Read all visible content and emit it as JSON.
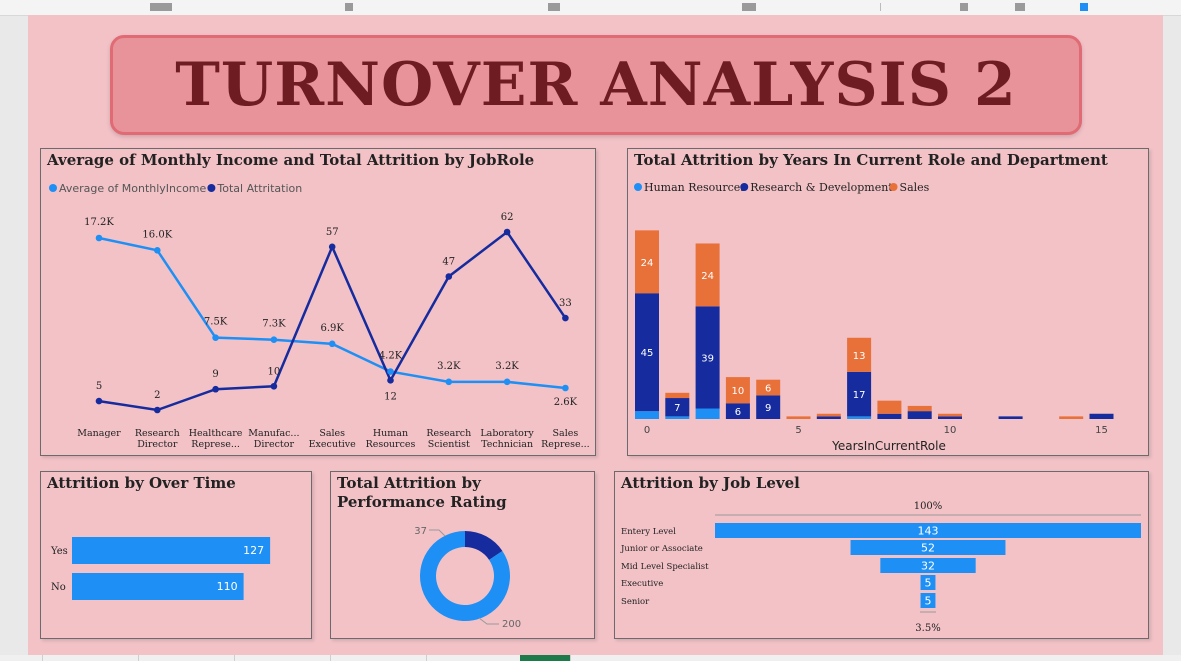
{
  "page": {
    "title": "TURNOVER ANALYSIS 2"
  },
  "colors": {
    "light_blue": "#1e8ff5",
    "dark_blue": "#152b9e",
    "orange": "#e8713a",
    "title_text": "#6e1c22"
  },
  "income_chart": {
    "title": "Average of Monthly Income and Total Attrition by JobRole",
    "legend": [
      "Average of MonthlyIncome",
      "Total Attritation"
    ],
    "chart_data": {
      "type": "line",
      "categories": [
        [
          "Manager"
        ],
        [
          "Research",
          "Director"
        ],
        [
          "Healthcare",
          "Represe..."
        ],
        [
          "Manufac...",
          "Director"
        ],
        [
          "Sales",
          "Executive"
        ],
        [
          "Human",
          "Resources"
        ],
        [
          "Research",
          "Scientist"
        ],
        [
          "Laboratory",
          "Technician"
        ],
        [
          "Sales",
          "Represe..."
        ]
      ],
      "series": [
        {
          "name": "Average of MonthlyIncome",
          "values": [
            17.2,
            16.0,
            7.5,
            7.3,
            6.9,
            4.2,
            3.2,
            3.2,
            2.6
          ],
          "labels": [
            "17.2K",
            "16.0K",
            "7.5K",
            "7.3K",
            "6.9K",
            "4.2K",
            "3.2K",
            "3.2K",
            "2.6K"
          ]
        },
        {
          "name": "Total Attritation",
          "values": [
            5,
            2,
            9,
            10,
            57,
            12,
            47,
            62,
            33
          ],
          "labels": [
            "5",
            "2",
            "9",
            "10",
            "57",
            "12",
            "47",
            "62",
            "33"
          ]
        }
      ]
    }
  },
  "years_chart": {
    "title": "Total Attrition by Years In Current Role and Department",
    "legend": [
      "Human Resources",
      "Research & Development",
      "Sales"
    ],
    "xlabel": "YearsInCurrentRole",
    "chart_data": {
      "type": "bar",
      "stacked": true,
      "x": [
        0,
        1,
        2,
        3,
        4,
        5,
        6,
        7,
        8,
        9,
        10,
        11,
        12,
        13,
        14,
        15
      ],
      "series": [
        {
          "name": "Human Resources",
          "values": [
            3,
            1,
            4,
            0,
            0,
            0,
            0,
            1,
            0,
            0,
            0,
            0,
            0,
            0,
            0,
            0
          ]
        },
        {
          "name": "Research & Development",
          "values": [
            45,
            7,
            39,
            6,
            9,
            0,
            1,
            17,
            2,
            3,
            1,
            0,
            1,
            0,
            0,
            2
          ]
        },
        {
          "name": "Sales",
          "values": [
            24,
            2,
            24,
            10,
            6,
            1,
            1,
            13,
            5,
            2,
            1,
            0,
            0,
            0,
            1,
            0
          ]
        }
      ],
      "data_labels": [
        "24",
        "45",
        "7",
        "24",
        "39",
        "10",
        "6",
        "6",
        "9",
        "13",
        "17"
      ],
      "xticks": [
        "0",
        "5",
        "10",
        "15"
      ]
    }
  },
  "overtime_chart": {
    "title": "Attrition by Over Time",
    "chart_data": {
      "type": "bar",
      "orientation": "horizontal",
      "categories": [
        "Yes",
        "No"
      ],
      "values": [
        127,
        110
      ],
      "labels": [
        "127",
        "110"
      ]
    }
  },
  "performance_chart": {
    "title": "Total Attrition by Performance Rating",
    "chart_data": {
      "type": "pie",
      "donut": true,
      "values": [
        37,
        200
      ],
      "labels": [
        "37",
        "200"
      ]
    }
  },
  "joblevel_chart": {
    "title": "Attrition by Job Level",
    "top_label": "100%",
    "bottom_label": "3.5%",
    "chart_data": {
      "type": "bar",
      "funnel": true,
      "categories": [
        "Entery Level",
        "Junior or Associate",
        "Mid Level Specialist",
        "Executive",
        "Senior"
      ],
      "values": [
        143,
        52,
        32,
        5,
        5
      ],
      "labels": [
        "143",
        "52",
        "32",
        "5",
        "5"
      ]
    }
  }
}
